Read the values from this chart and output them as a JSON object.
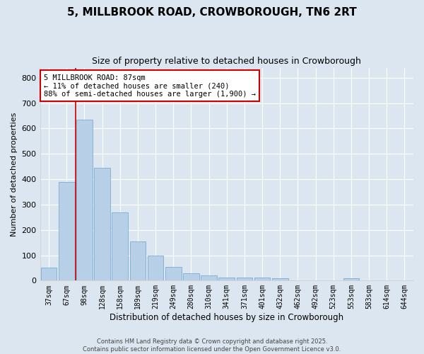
{
  "title": "5, MILLBROOK ROAD, CROWBOROUGH, TN6 2RT",
  "subtitle": "Size of property relative to detached houses in Crowborough",
  "xlabel": "Distribution of detached houses by size in Crowborough",
  "ylabel": "Number of detached properties",
  "categories": [
    "37sqm",
    "67sqm",
    "98sqm",
    "128sqm",
    "158sqm",
    "189sqm",
    "219sqm",
    "249sqm",
    "280sqm",
    "310sqm",
    "341sqm",
    "371sqm",
    "401sqm",
    "432sqm",
    "462sqm",
    "492sqm",
    "523sqm",
    "553sqm",
    "583sqm",
    "614sqm",
    "644sqm"
  ],
  "values": [
    50,
    390,
    635,
    445,
    270,
    155,
    100,
    55,
    30,
    20,
    13,
    13,
    13,
    8,
    0,
    0,
    0,
    8,
    0,
    0,
    0
  ],
  "bar_color": "#b8cfe8",
  "bar_edge_color": "#7aadd4",
  "vline_x": 1.5,
  "vline_color": "#cc0000",
  "annotation_text": "5 MILLBROOK ROAD: 87sqm\n← 11% of detached houses are smaller (240)\n88% of semi-detached houses are larger (1,900) →",
  "annotation_box_edge": "#cc0000",
  "ylim": [
    0,
    840
  ],
  "yticks": [
    0,
    100,
    200,
    300,
    400,
    500,
    600,
    700,
    800
  ],
  "plot_bg_color": "#dce6f0",
  "fig_bg_color": "#dce6f0",
  "grid_color": "#ffffff",
  "footer_line1": "Contains HM Land Registry data © Crown copyright and database right 2025.",
  "footer_line2": "Contains public sector information licensed under the Open Government Licence v3.0."
}
